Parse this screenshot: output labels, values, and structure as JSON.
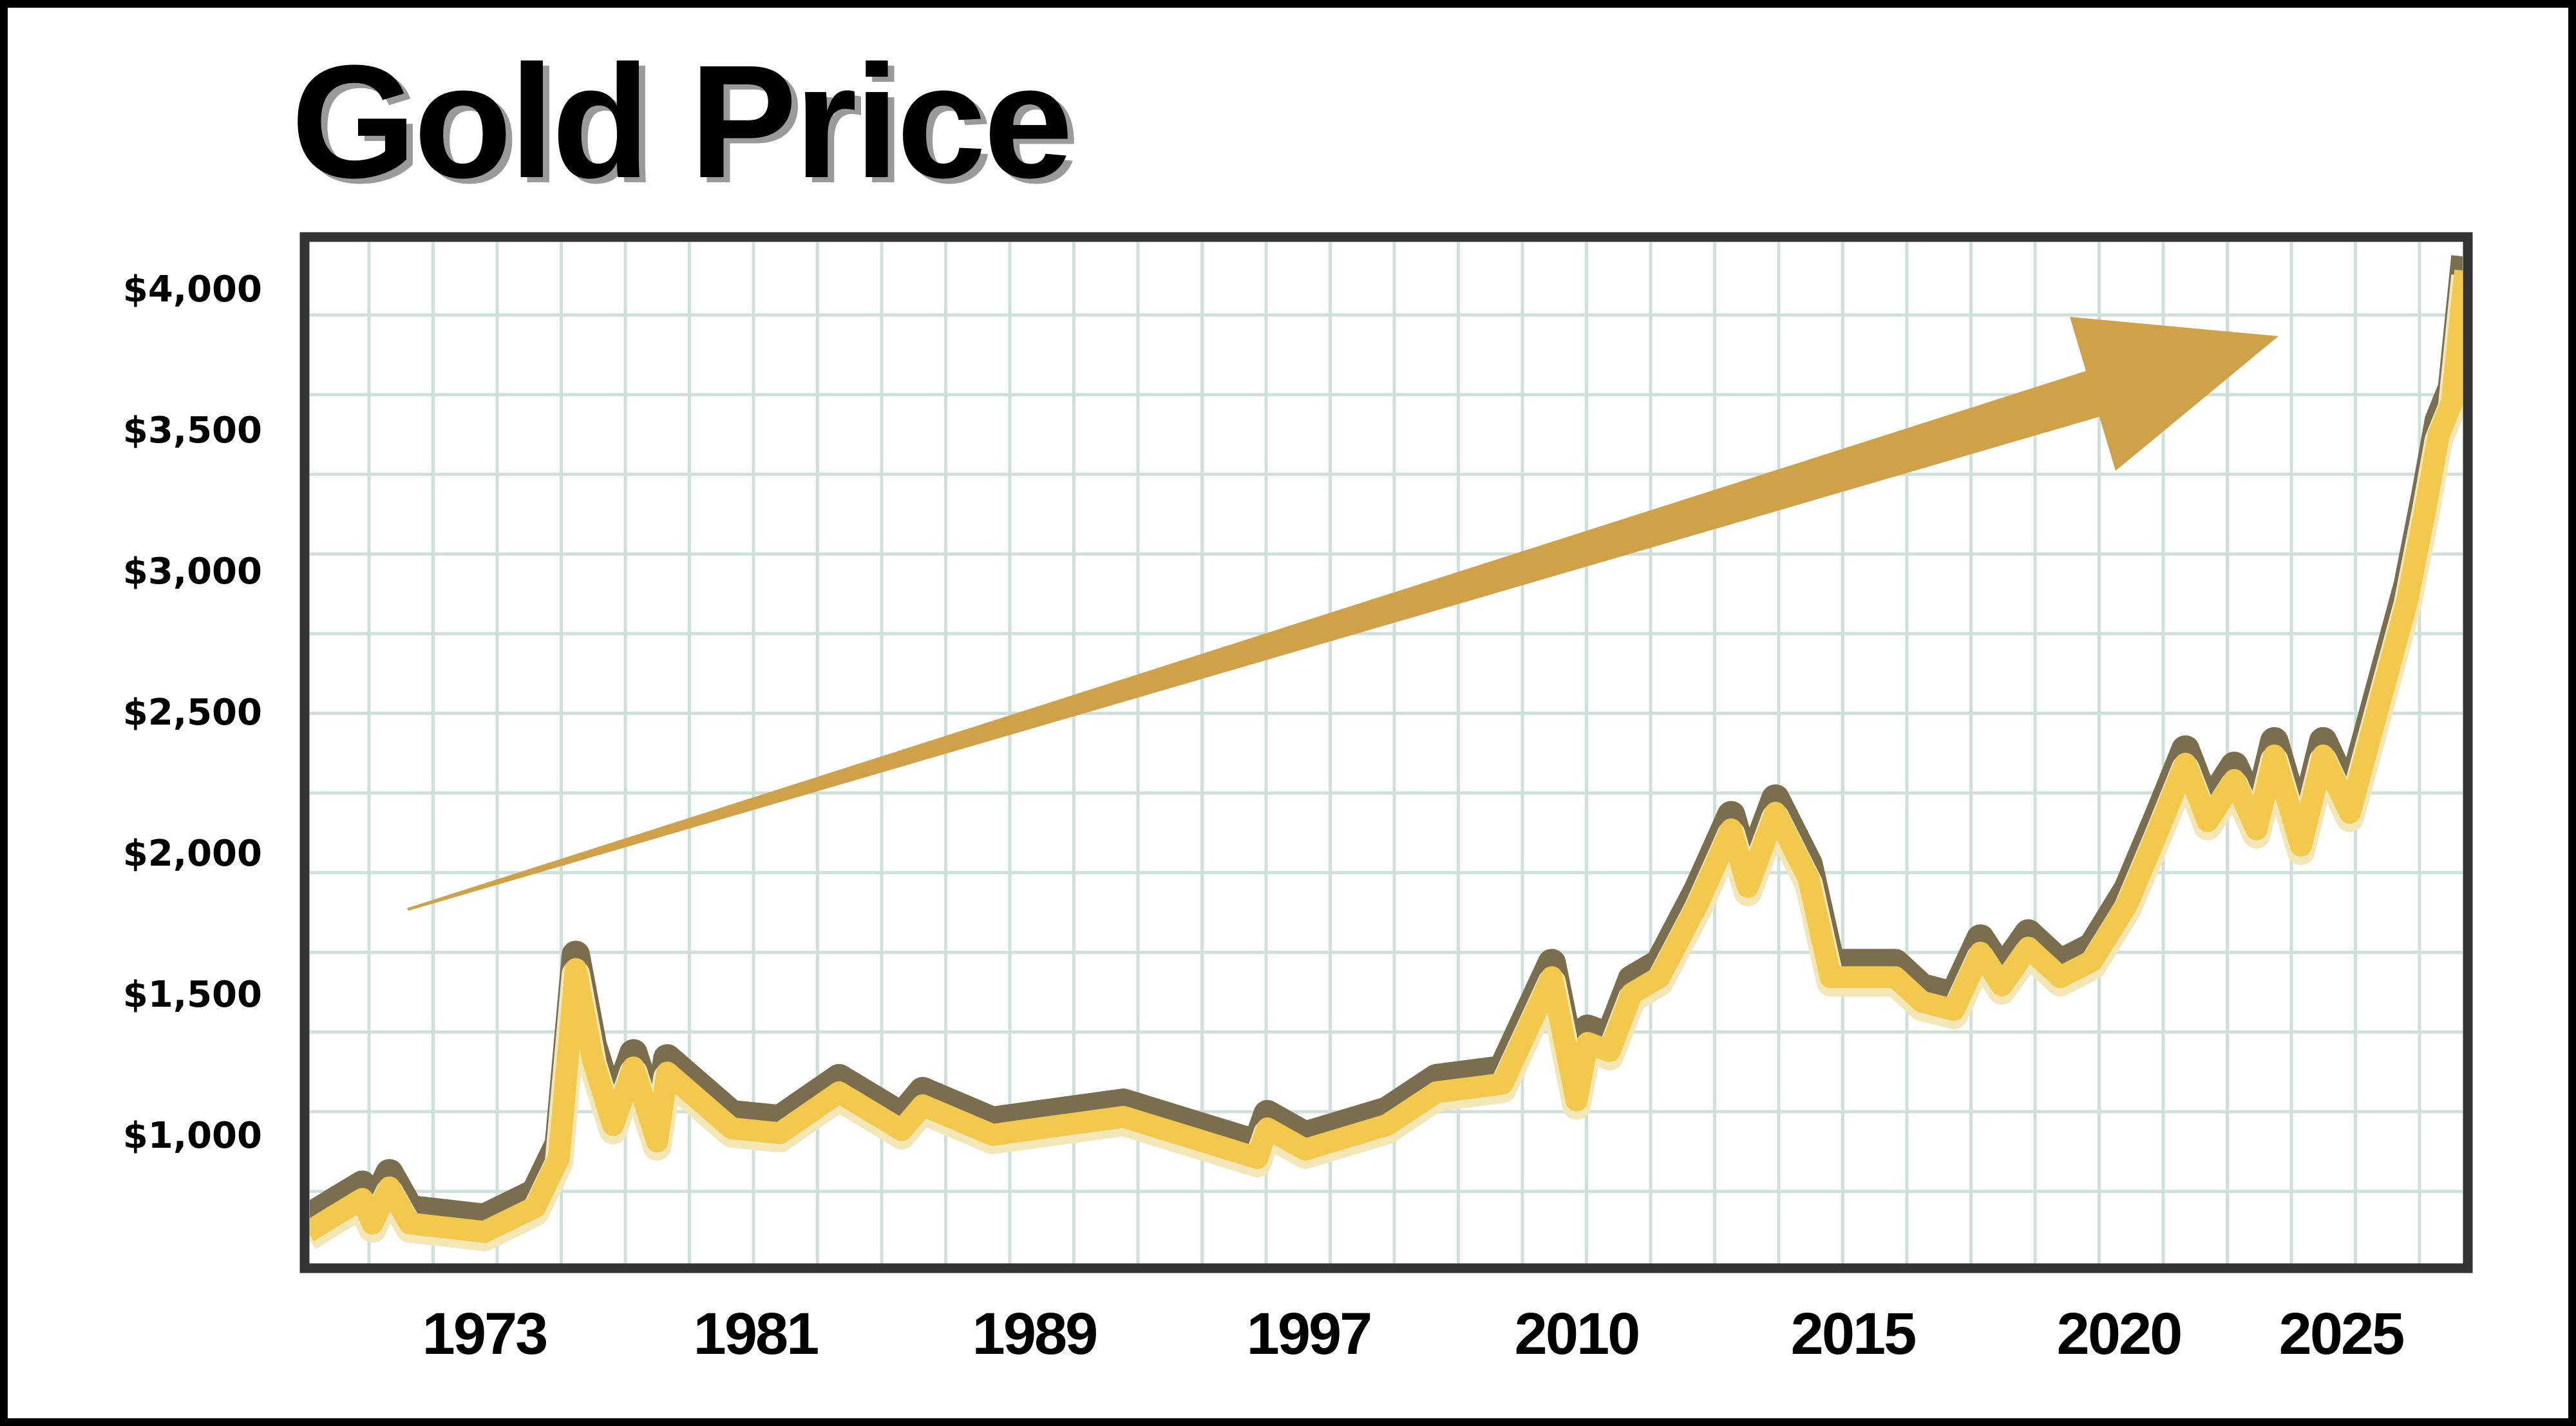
{
  "chart_data": {
    "type": "line",
    "title": "Gold Price",
    "xlabel": "",
    "ylabel": "",
    "x_ticks": [
      1973,
      1981,
      1989,
      1997,
      2010,
      2015,
      2020,
      2025
    ],
    "x_tick_labels": [
      "1973",
      "1981",
      "1989",
      "1997",
      "2010",
      "2015",
      "2020",
      "2025"
    ],
    "y_ticks": [
      1000,
      1500,
      2000,
      2500,
      3000,
      3500,
      4000
    ],
    "y_tick_labels": [
      "$1,000",
      "$1,500",
      "$2,000",
      "$2,500",
      "$3,000",
      "$3,500",
      "$4,000"
    ],
    "xlim": [
      1967.8,
      2027.9
    ],
    "ylim": [
      540,
      4180
    ],
    "grid": true,
    "legend": "none",
    "annotation": "upward trend arrow",
    "colors": {
      "line_gold": "#F2C94C",
      "line_shadow": "#7A6E4E",
      "line_highlight": "#F3E7B8",
      "arrow": "#CFA24A",
      "grid": "#CFE0DA",
      "frame": "#333333"
    },
    "series": [
      {
        "x": [
          1967.8,
          1968.6,
          1969.4,
          1969.7,
          1970.2,
          1970.8,
          1973.0,
          1974.5,
          1975.2,
          1975.7,
          1976.2,
          1976.8,
          1977.4,
          1978.1,
          1978.4,
          1980.3,
          1981.7,
          1983.4,
          1985.2,
          1985.8,
          1987.8,
          1991.6,
          1995.5,
          1995.8,
          1996.9,
          2000.8,
          2003.2,
          2006.4,
          2008.8,
          2010.0,
          2010.2,
          2010.6,
          2011.0,
          2011.5,
          2012.2,
          2012.8,
          2013.1,
          2013.6,
          2014.2,
          2014.6,
          2015.2,
          2015.8,
          2016.3,
          2016.9,
          2017.4,
          2017.8,
          2018.3,
          2018.9,
          2019.5,
          2020.2,
          2020.9,
          2021.5,
          2022.0,
          2022.6,
          2023.1,
          2023.5,
          2024.1,
          2024.6,
          2025.2,
          2025.7,
          2026.5,
          2026.9,
          2027.2,
          2027.5,
          2027.8
        ],
        "y": [
          656,
          715,
          773,
          686,
          814,
          686,
          656,
          744,
          918,
          1588,
          1268,
          1035,
          1239,
          977,
          1221,
          1023,
          1006,
          1151,
          1017,
          1105,
          1000,
          1064,
          918,
          1023,
          948,
          1035,
          1151,
          1181,
          1559,
          1122,
          1326,
          1297,
          1501,
          1559,
          1821,
          2083,
          1879,
          2142,
          1909,
          1559,
          1559,
          1559,
          1472,
          1443,
          1646,
          1530,
          1664,
          1559,
          1617,
          1821,
          2083,
          2316,
          2112,
          2258,
          2083,
          2345,
          2025,
          2345,
          2142,
          2433,
          2899,
          3219,
          3481,
          3598,
          4063
        ]
      }
    ]
  }
}
